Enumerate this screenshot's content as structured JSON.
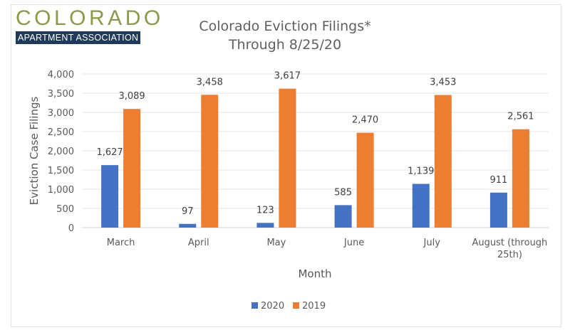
{
  "logo": {
    "main": "COLORADO",
    "sub": "APARTMENT ASSOCIATION"
  },
  "chart_data": {
    "type": "bar",
    "title": "Colorado Eviction Filings*",
    "subtitle": "Through 8/25/20",
    "xlabel": "Month",
    "ylabel": "Eviction Case Filings",
    "ylim": [
      0,
      4000
    ],
    "yticks": [
      0,
      500,
      1000,
      1500,
      2000,
      2500,
      3000,
      3500,
      4000
    ],
    "ytick_labels": [
      "0",
      "500",
      "1,000",
      "1,500",
      "2,000",
      "2,500",
      "3,000",
      "3,500",
      "4,000"
    ],
    "grid": true,
    "categories": [
      [
        "March"
      ],
      [
        "April"
      ],
      [
        "May"
      ],
      [
        "June"
      ],
      [
        "July"
      ],
      [
        "August (through",
        "25th)"
      ]
    ],
    "series": [
      {
        "name": "2020",
        "color": "#4472c4",
        "values": [
          1627,
          97,
          123,
          585,
          1139,
          911
        ],
        "labels": [
          "1,627",
          "97",
          "123",
          "585",
          "1,139",
          "911"
        ]
      },
      {
        "name": "2019",
        "color": "#ed7d31",
        "values": [
          3089,
          3458,
          3617,
          2470,
          3453,
          2561
        ],
        "labels": [
          "3,089",
          "3,458",
          "3,617",
          "2,470",
          "3,453",
          "2,561"
        ]
      }
    ],
    "legend": {
      "position": "bottom",
      "entries": [
        "2020",
        "2019"
      ]
    }
  }
}
